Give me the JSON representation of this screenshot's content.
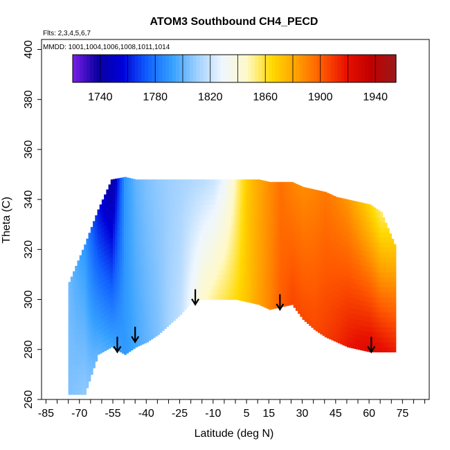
{
  "chart_data": {
    "type": "heatmap",
    "title": "ATOM3 Southbound CH4_PECD",
    "subtitle_flights": "Flts: 2,3,4,5,6,7",
    "subtitle_dates": "MMDD: 1001,1004,1006,1008,1011,1014",
    "xlabel": "Latitude (deg N)",
    "ylabel": "Theta (C)",
    "xlim": [
      -87,
      87
    ],
    "ylim": [
      260,
      404
    ],
    "x_ticks": [
      -85,
      -70,
      -55,
      -40,
      -25,
      -10,
      5,
      15,
      30,
      45,
      60,
      75
    ],
    "y_ticks": [
      260,
      280,
      300,
      320,
      340,
      360,
      380,
      400
    ],
    "grid": false,
    "colorbar": {
      "ticks": [
        1740,
        1780,
        1820,
        1860,
        1900,
        1940
      ],
      "range": [
        1720,
        1955
      ],
      "palette": [
        "#7a1ee8",
        "#0a00a0",
        "#0000d8",
        "#1060ff",
        "#35a0ff",
        "#9fd0ff",
        "#eef6ff",
        "#fff9c8",
        "#ffd900",
        "#ffa000",
        "#ff5a00",
        "#e81000",
        "#c00000",
        "#9a1a1a"
      ]
    },
    "field": {
      "lat": [
        -75,
        -68,
        -62,
        -56,
        -50,
        -45,
        -40,
        -35,
        -30,
        -25,
        -20,
        -15,
        -10,
        -5,
        0,
        5,
        10,
        15,
        20,
        25,
        30,
        35,
        40,
        45,
        50,
        55,
        60,
        65,
        72
      ],
      "theta_bottom": [
        262,
        262,
        278,
        281,
        278,
        281,
        283,
        286,
        290,
        294,
        299,
        300,
        300,
        300,
        300,
        299,
        298,
        296,
        297,
        298,
        292,
        288,
        285,
        283,
        281,
        280,
        279,
        279,
        279
      ],
      "theta_top": [
        307,
        322,
        336,
        348,
        349,
        348,
        348,
        348,
        348,
        348,
        348,
        348,
        348,
        348,
        348,
        348,
        348,
        347,
        347,
        347,
        345,
        344,
        343,
        341,
        340,
        339,
        338,
        335,
        320
      ],
      "ch4_low": [
        1805,
        1808,
        1800,
        1795,
        1790,
        1795,
        1800,
        1805,
        1812,
        1818,
        1832,
        1845,
        1852,
        1858,
        1864,
        1872,
        1882,
        1890,
        1900,
        1906,
        1905,
        1905,
        1908,
        1912,
        1918,
        1922,
        1925,
        1922,
        1916
      ],
      "ch4_high": [
        1802,
        1790,
        1760,
        1738,
        1790,
        1800,
        1805,
        1808,
        1810,
        1812,
        1814,
        1816,
        1820,
        1830,
        1850,
        1870,
        1880,
        1888,
        1895,
        1890,
        1888,
        1890,
        1893,
        1890,
        1885,
        1876,
        1865,
        1855,
        1872
      ]
    },
    "arrows_lat": [
      -53,
      -45,
      -18,
      20,
      61
    ],
    "arrows_theta_tip": [
      279,
      283,
      298,
      296,
      279
    ]
  }
}
